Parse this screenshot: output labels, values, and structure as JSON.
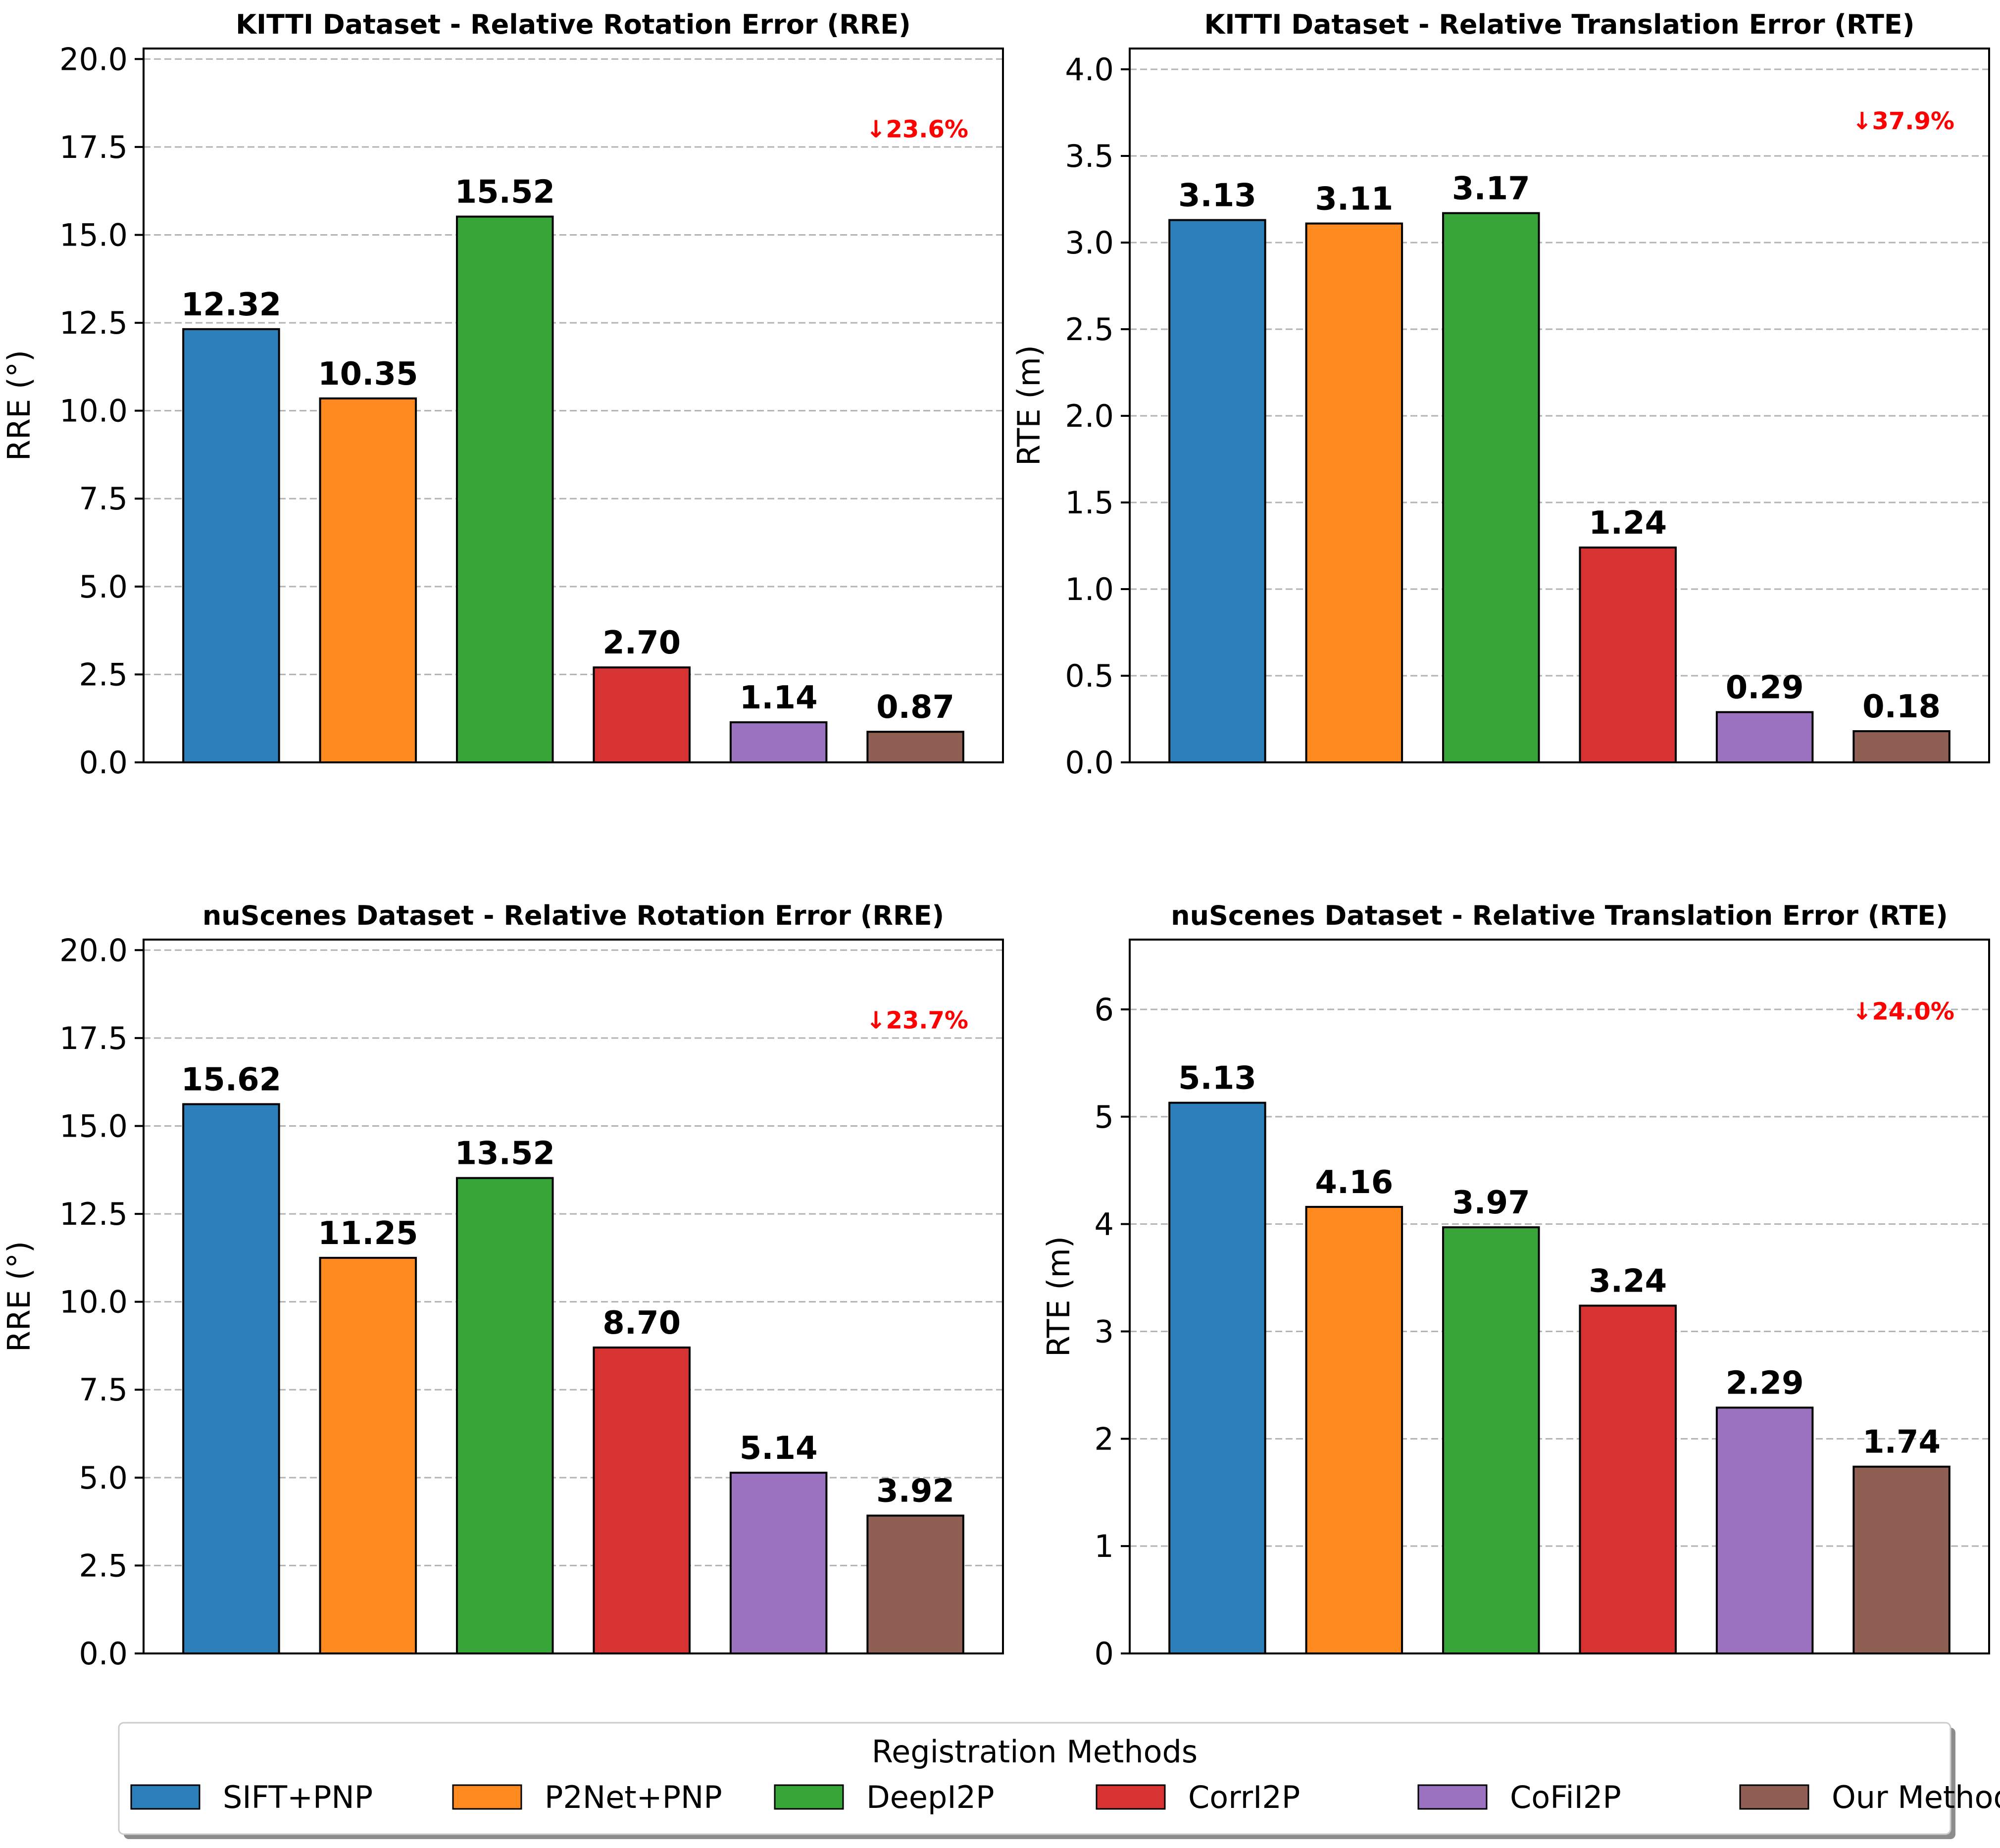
{
  "legend": {
    "title": "Registration Methods",
    "placement": "bottom-center",
    "items": [
      {
        "label": "SIFT+PNP",
        "color": "#2c7fb8"
      },
      {
        "label": "P2Net+PNP",
        "color": "#ff8a1f"
      },
      {
        "label": "DeepI2P",
        "color": "#38a538"
      },
      {
        "label": "CorrI2P",
        "color": "#d73333"
      },
      {
        "label": "CoFiI2P",
        "color": "#9a72bf"
      },
      {
        "label": "Our Method",
        "color": "#8f5f54"
      }
    ]
  },
  "chart_data": [
    {
      "type": "bar",
      "title": "KITTI Dataset - Relative Rotation Error (RRE)",
      "xlabel": "",
      "ylabel": "RRE (°)",
      "ylim": [
        0,
        20.3
      ],
      "yticks": [
        0,
        2.5,
        5,
        7.5,
        10,
        12.5,
        15,
        17.5,
        20
      ],
      "tick_labels": [
        "0.0",
        "2.5",
        "5.0",
        "7.5",
        "10.0",
        "12.5",
        "15.0",
        "17.5",
        "20.0"
      ],
      "categories": [
        "SIFT+PNP",
        "P2Net+PNP",
        "DeepI2P",
        "CorrI2P",
        "CoFiI2P",
        "Our Method"
      ],
      "values": [
        12.32,
        10.35,
        15.52,
        2.7,
        1.14,
        0.87
      ],
      "value_labels": [
        "12.32",
        "10.35",
        "15.52",
        "2.70",
        "1.14",
        "0.87"
      ],
      "annotation": "↓23.6%",
      "annotation_y": 18.0,
      "grid": true
    },
    {
      "type": "bar",
      "title": "KITTI Dataset - Relative Translation Error (RTE)",
      "xlabel": "",
      "ylabel": "RTE (m)",
      "ylim": [
        0,
        4.12
      ],
      "yticks": [
        0,
        0.5,
        1,
        1.5,
        2,
        2.5,
        3,
        3.5,
        4
      ],
      "tick_labels": [
        "0.0",
        "0.5",
        "1.0",
        "1.5",
        "2.0",
        "2.5",
        "3.0",
        "3.5",
        "4.0"
      ],
      "categories": [
        "SIFT+PNP",
        "P2Net+PNP",
        "DeepI2P",
        "CorrI2P",
        "CoFiI2P",
        "Our Method"
      ],
      "values": [
        3.13,
        3.11,
        3.17,
        1.24,
        0.29,
        0.18
      ],
      "value_labels": [
        "3.13",
        "3.11",
        "3.17",
        "1.24",
        "0.29",
        "0.18"
      ],
      "annotation": "↓37.9%",
      "annotation_y": 3.7,
      "grid": true
    },
    {
      "type": "bar",
      "title": "nuScenes Dataset - Relative Rotation Error (RRE)",
      "xlabel": "",
      "ylabel": "RRE (°)",
      "ylim": [
        0,
        20.3
      ],
      "yticks": [
        0,
        2.5,
        5,
        7.5,
        10,
        12.5,
        15,
        17.5,
        20
      ],
      "tick_labels": [
        "0.0",
        "2.5",
        "5.0",
        "7.5",
        "10.0",
        "12.5",
        "15.0",
        "17.5",
        "20.0"
      ],
      "categories": [
        "SIFT+PNP",
        "P2Net+PNP",
        "DeepI2P",
        "CorrI2P",
        "CoFiI2P",
        "Our Method"
      ],
      "values": [
        15.62,
        11.25,
        13.52,
        8.7,
        5.14,
        3.92
      ],
      "value_labels": [
        "15.62",
        "11.25",
        "13.52",
        "8.70",
        "5.14",
        "3.92"
      ],
      "annotation": "↓23.7%",
      "annotation_y": 18.0,
      "grid": true
    },
    {
      "type": "bar",
      "title": "nuScenes Dataset - Relative Translation Error (RTE)",
      "xlabel": "",
      "ylabel": "RTE (m)",
      "ylim": [
        0,
        6.65
      ],
      "yticks": [
        0,
        1,
        2,
        3,
        4,
        5,
        6
      ],
      "tick_labels": [
        "0",
        "1",
        "2",
        "3",
        "4",
        "5",
        "6"
      ],
      "categories": [
        "SIFT+PNP",
        "P2Net+PNP",
        "DeepI2P",
        "CorrI2P",
        "CoFiI2P",
        "Our Method"
      ],
      "values": [
        5.13,
        4.16,
        3.97,
        3.24,
        2.29,
        1.74
      ],
      "value_labels": [
        "5.13",
        "4.16",
        "3.97",
        "3.24",
        "2.29",
        "1.74"
      ],
      "annotation": "↓24.0%",
      "annotation_y": 5.98,
      "grid": true
    }
  ]
}
